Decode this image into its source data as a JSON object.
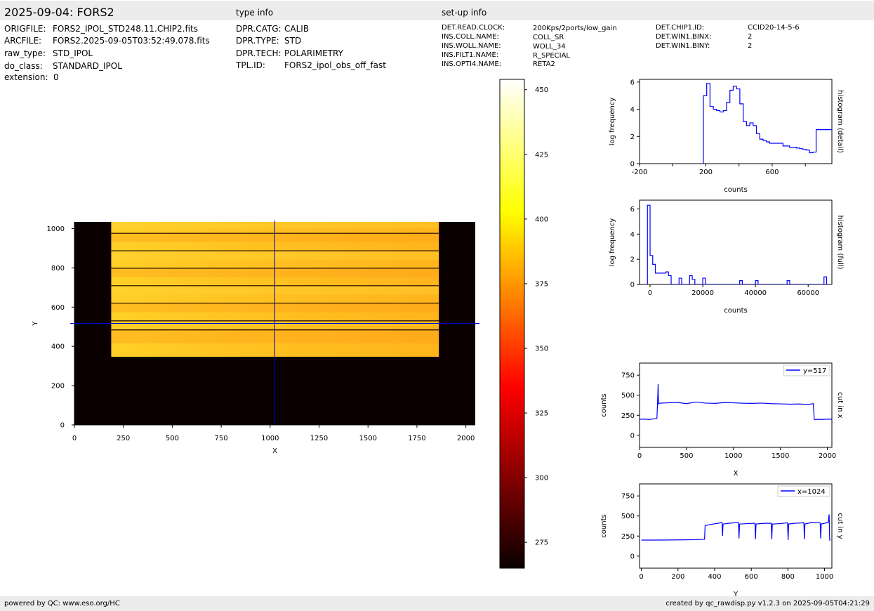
{
  "header": {
    "title": "2025-09-04: FORS2",
    "type_info_title": "type info",
    "setup_info_title": "set-up info"
  },
  "file_info": [
    {
      "key": "ORIGFILE:",
      "value": "FORS2_IPOL_STD248.11.CHIP2.fits"
    },
    {
      "key": "ARCFILE:",
      "value": "FORS2.2025-09-05T03:52:49.078.fits"
    },
    {
      "key": "raw_type:",
      "value": "STD_IPOL"
    },
    {
      "key": "do_class:",
      "value": "STANDARD_IPOL"
    },
    {
      "key": "extension:",
      "value": "0"
    }
  ],
  "type_info": [
    {
      "key": "DPR.CATG:",
      "value": "CALIB"
    },
    {
      "key": "DPR.TYPE:",
      "value": "STD"
    },
    {
      "key": "DPR.TECH:",
      "value": "POLARIMETRY"
    },
    {
      "key": "TPL.ID:",
      "value": "FORS2_ipol_obs_off_fast"
    }
  ],
  "setup_info_left": [
    {
      "key": "DET.READ.CLOCK:",
      "value": "200Kps/2ports/low_gain"
    },
    {
      "key": "INS.COLL.NAME:",
      "value": "COLL_SR"
    },
    {
      "key": "INS.WOLL.NAME:",
      "value": "WOLL_34"
    },
    {
      "key": "INS.FILT1.NAME:",
      "value": "R_SPECIAL"
    },
    {
      "key": "INS.OPTI4.NAME:",
      "value": "RETA2"
    }
  ],
  "setup_info_right": [
    {
      "key": "DET.CHIP1.ID:",
      "value": "CCID20-14-5-6"
    },
    {
      "key": "DET.WIN1.BINX:",
      "value": "2"
    },
    {
      "key": "DET.WIN1.BINY:",
      "value": "2"
    }
  ],
  "footer": {
    "left": "powered by QC: www.eso.org/HC",
    "right": "created by qc_rawdisp.py v1.2.3 on 2025-09-05T04:21:29"
  },
  "colors": {
    "bar_bg": "#ececec",
    "plot_line": "#0000ff",
    "crosshair": "#0000cc"
  },
  "chart_data": [
    {
      "type": "heatmap",
      "title": "",
      "xlabel": "X",
      "ylabel": "Y",
      "xlim": [
        0,
        2048
      ],
      "ylim": [
        0,
        1034
      ],
      "xticks": [
        0,
        250,
        500,
        750,
        1000,
        1250,
        1500,
        1750,
        2000
      ],
      "yticks": [
        0,
        200,
        400,
        600,
        800,
        1000
      ],
      "illuminated_x": [
        188,
        1862
      ],
      "illuminated_y": [
        347,
        1034
      ],
      "strip_dividers_y": [
        484,
        530,
        620,
        709,
        798,
        887,
        976
      ],
      "crosshair_x": 1024,
      "crosshair_y": 517,
      "colormap": "hot",
      "colorbar_ticks": [
        275,
        300,
        325,
        350,
        375,
        400,
        425,
        450
      ],
      "colorbar_range": [
        265,
        454
      ]
    },
    {
      "type": "line",
      "ylabel": "log frequency",
      "xlabel": "counts",
      "side_label": "histogram (detail)",
      "xlim": [
        -200,
        960
      ],
      "ylim": [
        0,
        6.2
      ],
      "xticks": [
        -200,
        200,
        600
      ],
      "yticks": [
        0,
        2,
        4,
        6
      ],
      "x": [
        185,
        185,
        205,
        225,
        245,
        265,
        285,
        305,
        325,
        345,
        365,
        385,
        405,
        425,
        445,
        465,
        485,
        505,
        525,
        545,
        565,
        585,
        605,
        625,
        645,
        665,
        685,
        705,
        725,
        745,
        765,
        785,
        805,
        825,
        845,
        865,
        885,
        905,
        925,
        945,
        960
      ],
      "y": [
        0,
        5.0,
        5.9,
        4.2,
        4.0,
        3.9,
        3.8,
        3.9,
        4.5,
        5.4,
        5.7,
        5.5,
        4.4,
        3.1,
        2.8,
        3.0,
        2.8,
        2.2,
        1.8,
        1.7,
        1.6,
        1.5,
        1.5,
        1.5,
        1.5,
        1.3,
        1.3,
        1.2,
        1.2,
        1.15,
        1.1,
        1.05,
        1.0,
        0.8,
        0.85,
        2.5,
        2.5,
        2.5,
        2.5,
        2.5,
        2.5
      ]
    },
    {
      "type": "line",
      "ylabel": "log frequency",
      "xlabel": "counts",
      "side_label": "histogram (full)",
      "xlim": [
        -4000,
        69000
      ],
      "ylim": [
        0,
        6.7
      ],
      "xticks": [
        0,
        20000,
        40000,
        60000
      ],
      "yticks": [
        0,
        2,
        4,
        6
      ],
      "x": [
        -1000,
        -1000,
        0,
        1000,
        2000,
        4000,
        6000,
        7000,
        8000,
        9000,
        10000,
        11000,
        12000,
        13000,
        14000,
        15000,
        16000,
        17000,
        18000,
        19000,
        20000,
        21000,
        22000,
        23000,
        33000,
        34000,
        35000,
        39000,
        40000,
        41000,
        51000,
        52000,
        53000,
        65000,
        66000,
        67000,
        68000
      ],
      "y": [
        0,
        6.3,
        2.3,
        1.6,
        0.9,
        0.9,
        1.0,
        0.7,
        0.0,
        0.0,
        0.0,
        0.5,
        0.0,
        0.0,
        0.0,
        0.7,
        0.4,
        0.0,
        0.0,
        0.0,
        0.5,
        0.0,
        0.0,
        0.0,
        0.0,
        0.3,
        0.0,
        0.0,
        0.3,
        0.0,
        0.0,
        0.3,
        0.0,
        0.0,
        0.6,
        0.0,
        0.0
      ]
    },
    {
      "type": "line",
      "ylabel": "counts",
      "xlabel": "X",
      "side_label": "cut in x",
      "legend": "y=517",
      "xlim": [
        0,
        2048
      ],
      "ylim": [
        -150,
        900
      ],
      "xticks": [
        0,
        500,
        1000,
        1500,
        2000
      ],
      "yticks": [
        0,
        250,
        500,
        750
      ],
      "x": [
        0,
        50,
        100,
        150,
        185,
        190,
        195,
        198,
        200,
        205,
        210,
        300,
        400,
        500,
        600,
        700,
        800,
        900,
        1000,
        1100,
        1200,
        1300,
        1400,
        1500,
        1600,
        1700,
        1800,
        1850,
        1860,
        1870,
        1900,
        1950,
        2000,
        2048
      ],
      "y": [
        200,
        202,
        198,
        205,
        210,
        350,
        520,
        640,
        480,
        390,
        400,
        405,
        410,
        395,
        415,
        402,
        398,
        408,
        405,
        400,
        398,
        402,
        395,
        392,
        388,
        390,
        385,
        395,
        200,
        195,
        200,
        198,
        202,
        200
      ]
    },
    {
      "type": "line",
      "ylabel": "counts",
      "xlabel": "Y",
      "side_label": "cut in y",
      "legend": "x=1024",
      "xlim": [
        -10,
        1040
      ],
      "ylim": [
        -150,
        900
      ],
      "xticks": [
        0,
        200,
        400,
        600,
        800,
        1000
      ],
      "yticks": [
        0,
        250,
        500,
        750
      ],
      "x": [
        0,
        100,
        200,
        300,
        345,
        348,
        380,
        420,
        440,
        443,
        446,
        480,
        530,
        533,
        536,
        580,
        620,
        623,
        626,
        660,
        709,
        712,
        715,
        760,
        798,
        801,
        804,
        840,
        887,
        890,
        893,
        930,
        976,
        979,
        982,
        1020,
        1025,
        1028,
        1032
      ],
      "y": [
        200,
        200,
        202,
        205,
        210,
        380,
        395,
        410,
        420,
        250,
        400,
        410,
        420,
        220,
        400,
        405,
        410,
        210,
        400,
        408,
        410,
        210,
        400,
        405,
        415,
        200,
        400,
        410,
        415,
        210,
        400,
        420,
        415,
        220,
        400,
        420,
        520,
        200,
        200
      ]
    }
  ]
}
